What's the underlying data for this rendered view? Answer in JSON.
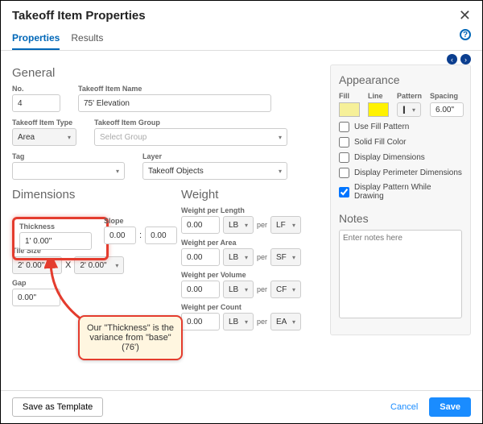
{
  "header": {
    "title": "Takeoff Item Properties"
  },
  "tabs": {
    "properties": "Properties",
    "results": "Results"
  },
  "general": {
    "heading": "General",
    "no_label": "No.",
    "no_value": "4",
    "name_label": "Takeoff Item Name",
    "name_value": "75' Elevation",
    "type_label": "Takeoff Item Type",
    "type_value": "Area",
    "group_label": "Takeoff Item Group",
    "group_value": "Select Group",
    "tag_label": "Tag",
    "tag_value": "",
    "layer_label": "Layer",
    "layer_value": "Takeoff Objects"
  },
  "dimensions": {
    "heading": "Dimensions",
    "thickness_label": "Thickness",
    "thickness_value": "1' 0.00\"",
    "slope_label": "Slope",
    "slope_rise": "0.00",
    "slope_run": "0.00",
    "tile_label": "Tile Size",
    "tile_w": "2' 0.00\"",
    "tile_x": "X",
    "tile_h": "2' 0.00\"",
    "gap_label": "Gap",
    "gap_value": "0.00\""
  },
  "weight": {
    "heading": "Weight",
    "rows": [
      {
        "label": "Weight per Length",
        "val": "0.00",
        "u1": "LB",
        "u2": "LF"
      },
      {
        "label": "Weight per Area",
        "val": "0.00",
        "u1": "LB",
        "u2": "SF"
      },
      {
        "label": "Weight per Volume",
        "val": "0.00",
        "u1": "LB",
        "u2": "CF"
      },
      {
        "label": "Weight per Count",
        "val": "0.00",
        "u1": "LB",
        "u2": "EA"
      }
    ],
    "per": "per"
  },
  "appearance": {
    "heading": "Appearance",
    "fill_label": "Fill",
    "fill_color": "#f6f099",
    "line_label": "Line",
    "line_color": "#fff200",
    "pattern_label": "Pattern",
    "spacing_label": "Spacing",
    "spacing_value": "6.00\"",
    "opts": {
      "use_fill": "Use Fill Pattern",
      "solid": "Solid Fill Color",
      "disp_dim": "Display Dimensions",
      "disp_perim": "Display Perimeter Dimensions",
      "disp_pattern": "Display Pattern While Drawing"
    }
  },
  "notes": {
    "heading": "Notes",
    "placeholder": "Enter notes here"
  },
  "callout": "Our \"Thickness\" is the variance from \"base\" (76')",
  "footer": {
    "template": "Save as Template",
    "cancel": "Cancel",
    "save": "Save"
  },
  "colors": {
    "highlight": "#e43c2e",
    "primary": "#1a8cff",
    "tab": "#0067b8"
  }
}
